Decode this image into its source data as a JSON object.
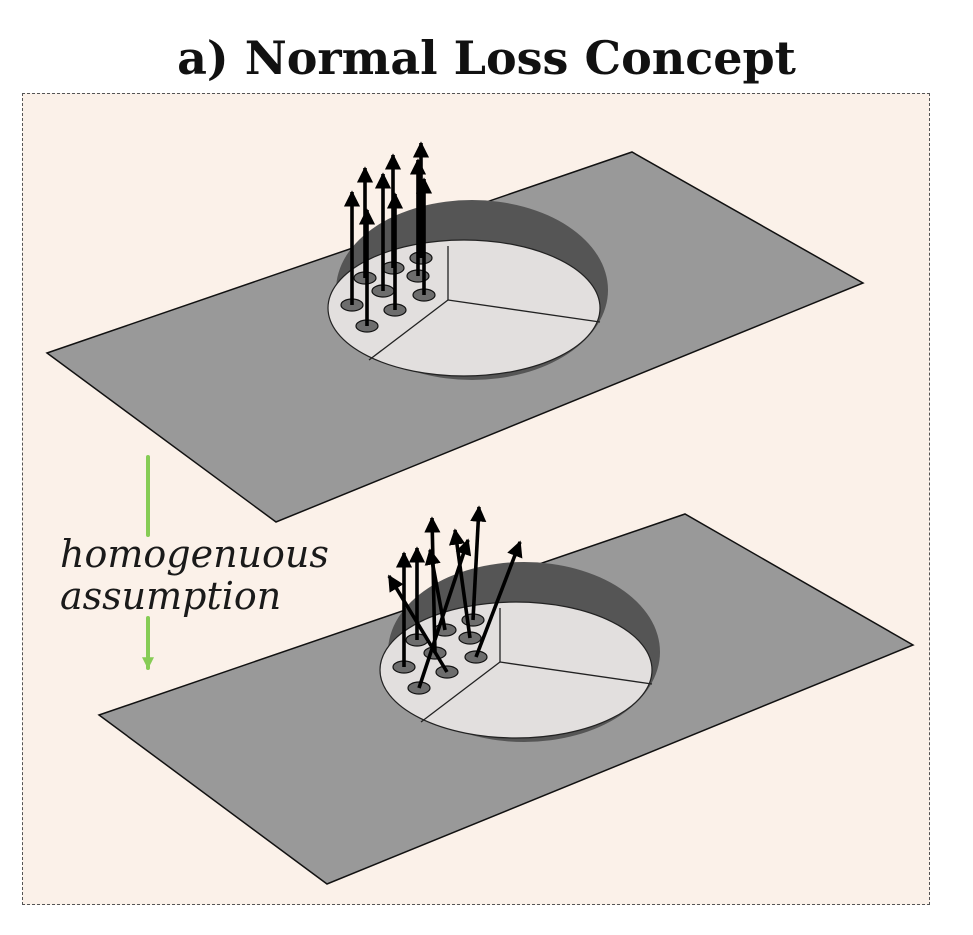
{
  "figure": {
    "title": "a) Normal Loss Concept",
    "label_line1": "homogenuous",
    "label_line2": "assumption"
  },
  "colors": {
    "panel_bg": "#fbf1e9",
    "plane": "#999999",
    "disk": "#e1dedd",
    "disk_shadow": "#5a5a5a",
    "dot": "#6d6d6d",
    "arrow": "#000000",
    "assumption_arrow": "#86cc55"
  }
}
